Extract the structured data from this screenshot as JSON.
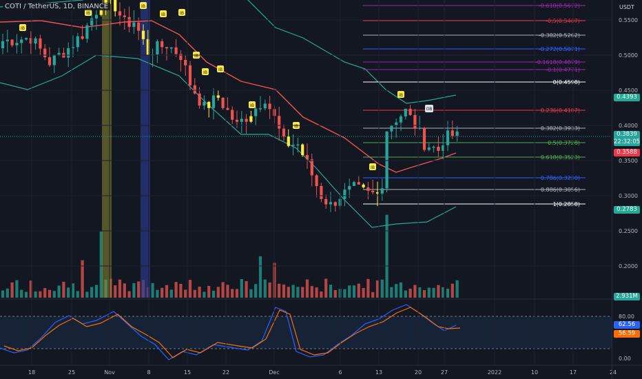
{
  "header": {
    "symbol_title": "COTI / TetherUS, 1D, BINANCE",
    "currency": "USDT"
  },
  "price_axis": {
    "ticks": [
      "0.5500",
      "0.5000",
      "0.4500",
      "0.4000",
      "0.3500",
      "0.3000",
      "0.2500",
      "0.2000"
    ],
    "current_price": "0.3839",
    "countdown": "22:32:05",
    "tags": {
      "upper_band": "0.4393",
      "basis": "0.3588",
      "lower_band": "0.2783",
      "volume": "2.931M"
    }
  },
  "oscillator_axis": {
    "ticks": [
      "80.00",
      "0.00"
    ],
    "k_value": "62.56",
    "d_value": "56.59"
  },
  "time_axis": {
    "labels": [
      "18",
      "25",
      "Nov",
      "8",
      "15",
      "22",
      "Dec",
      "6",
      "13",
      "20",
      "27",
      "2022",
      "10",
      "17",
      "24"
    ]
  },
  "fibonacci": [
    {
      "label": "-0.618(0.5672)",
      "color": "#9c27b0"
    },
    {
      "label": "-0.5(0.5467)",
      "color": "#f23645"
    },
    {
      "label": "-0.382(0.5262)",
      "color": "#b2b5be"
    },
    {
      "label": "-0.272(0.5071)",
      "color": "#2962ff"
    },
    {
      "label": "-0.1618(0.4879)",
      "color": "#9c27b0"
    },
    {
      "label": "-0.1(0.4771)",
      "color": "#9c27b0"
    },
    {
      "label": "0(0.4598)",
      "color": "#ffffff"
    },
    {
      "label": "0.236(0.4187)",
      "color": "#f23645"
    },
    {
      "label": "0.382(0.3933)",
      "color": "#b2b5be"
    },
    {
      "label": "0.5(0.3728)",
      "color": "#4caf50"
    },
    {
      "label": "0.618(0.3523)",
      "color": "#4caf50"
    },
    {
      "label": "0.786(0.3230)",
      "color": "#2962ff"
    },
    {
      "label": "0.886(0.3056)",
      "color": "#b2b5be"
    },
    {
      "label": "1(0.2858)",
      "color": "#ffffff"
    }
  ],
  "markers": {
    "ib": "IB",
    "ob": "OB"
  },
  "colors": {
    "background": "#131722",
    "bull": "#26a69a",
    "bear": "#ef5350",
    "highlight": "#ffeb3b",
    "basis": "#f05350",
    "bands": "#22ab94",
    "stoch_k": "#2962ff",
    "stoch_d": "#ff6d00"
  }
}
